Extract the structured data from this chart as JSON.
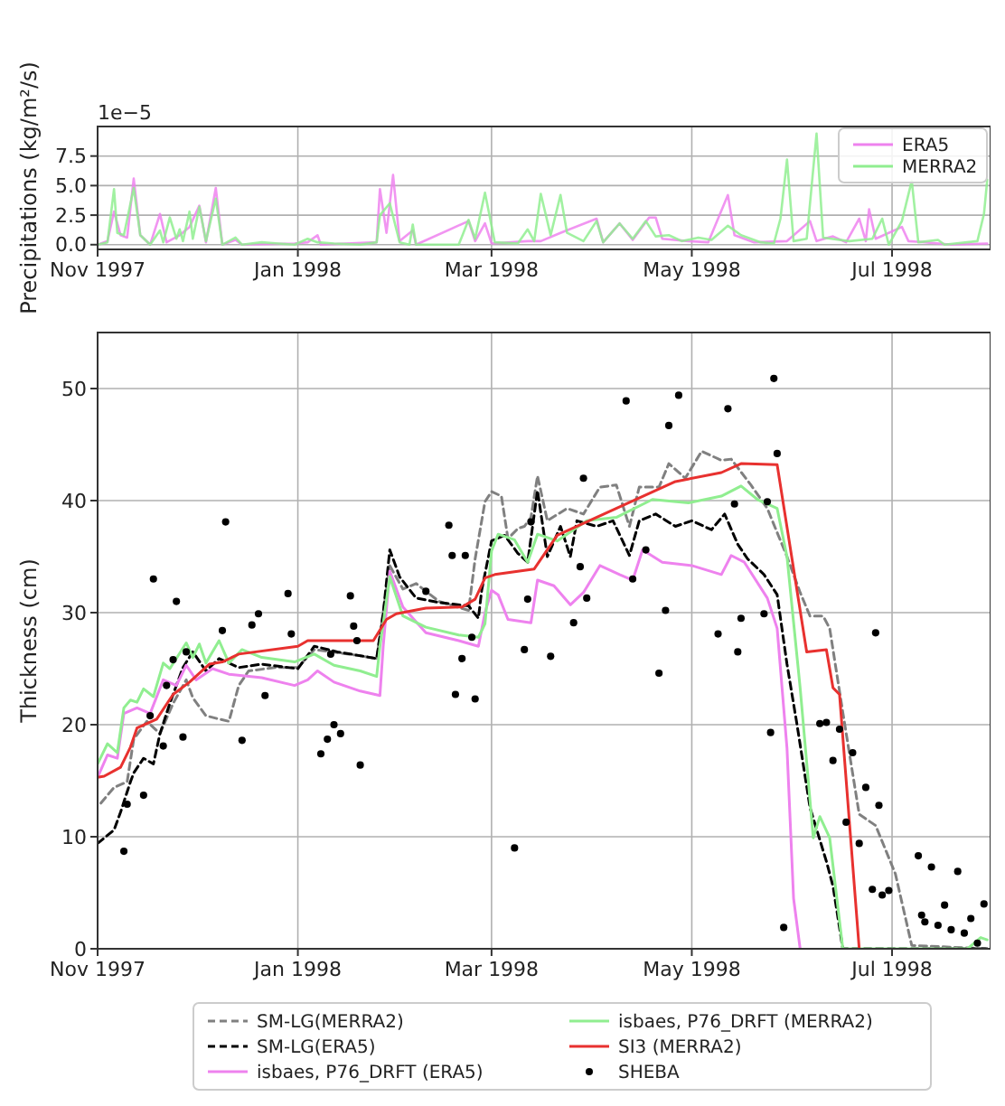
{
  "chart_data": [
    {
      "type": "line",
      "ylabel": "Precipitations (kg/m²/s)",
      "xlim": [
        "1997-11-01",
        "1998-07-31"
      ],
      "xticks": [
        {
          "value": "1997-11-01",
          "label": "Nov 1997"
        },
        {
          "value": "1998-01-01",
          "label": "Jan 1998"
        },
        {
          "value": "1998-03-01",
          "label": "Mar 1998"
        },
        {
          "value": "1998-05-01",
          "label": "May 1998"
        },
        {
          "value": "1998-07-01",
          "label": "Jul 1998"
        }
      ],
      "ylim": [
        -0.4,
        10
      ],
      "yticks": [
        {
          "value": 0,
          "label": "0.0"
        },
        {
          "value": 2.5,
          "label": "2.5"
        },
        {
          "value": 5,
          "label": "5.0"
        },
        {
          "value": 7.5,
          "label": "7.5"
        }
      ],
      "grid": true,
      "legend": "top right",
      "annotations": [
        "1e−5"
      ],
      "series": [
        {
          "name": "ERA5",
          "color": "#ee82ee",
          "x": [
            "1997-11-01",
            "1997-11-04",
            "1997-11-06",
            "1997-11-08",
            "1997-11-10",
            "1997-11-12",
            "1997-11-14",
            "1997-11-17",
            "1997-11-20",
            "1997-11-22",
            "1997-11-26",
            "1997-11-29",
            "1997-12-02",
            "1997-12-04",
            "1997-12-07",
            "1997-12-09",
            "1997-12-13",
            "1997-12-15",
            "1997-12-31",
            "1998-01-04",
            "1998-01-07",
            "1998-01-08",
            "1998-01-25",
            "1998-01-26",
            "1998-01-28",
            "1998-01-30",
            "1998-02-01",
            "1998-02-05",
            "1998-02-06",
            "1998-02-22",
            "1998-02-24",
            "1998-02-27",
            "1998-03-01",
            "1998-03-12",
            "1998-03-16",
            "1998-03-22",
            "1998-04-02",
            "1998-04-04",
            "1998-04-09",
            "1998-04-13",
            "1998-04-18",
            "1998-04-20",
            "1998-04-22",
            "1998-04-30",
            "1998-05-06",
            "1998-05-12",
            "1998-05-14",
            "1998-05-20",
            "1998-05-30",
            "1998-06-06",
            "1998-06-08",
            "1998-06-13",
            "1998-06-17",
            "1998-06-21",
            "1998-06-23",
            "1998-06-24",
            "1998-06-26",
            "1998-07-04",
            "1998-07-06",
            "1998-07-11",
            "1998-07-19",
            "1998-07-30"
          ],
          "values": [
            0,
            0.3,
            2.8,
            0.8,
            0.6,
            5.6,
            0.8,
            0,
            2.6,
            0.2,
            0.8,
            1.5,
            3.3,
            0.2,
            4.8,
            0,
            0.4,
            0,
            0.1,
            0.2,
            0.8,
            0,
            0.2,
            4.7,
            1.0,
            5.9,
            0.3,
            1.2,
            0,
            2.0,
            0.3,
            1.8,
            0.1,
            0.3,
            0.3,
            1.0,
            2.2,
            0.2,
            1.8,
            0.4,
            2.3,
            2.3,
            0.5,
            0.3,
            0.2,
            4.2,
            0.8,
            0.2,
            0.3,
            2.0,
            0.3,
            0.7,
            0.2,
            2.2,
            0.3,
            3.0,
            0.5,
            1.5,
            0.3,
            0.2,
            0,
            0.1
          ]
        },
        {
          "name": "MERRA2",
          "color": "#90ee90",
          "x": [
            "1997-11-01",
            "1997-11-04",
            "1997-11-06",
            "1997-11-07",
            "1997-11-09",
            "1997-11-12",
            "1997-11-14",
            "1997-11-17",
            "1997-11-20",
            "1997-11-21",
            "1997-11-23",
            "1997-11-25",
            "1997-11-26",
            "1997-11-27",
            "1997-11-29",
            "1997-11-30",
            "1997-12-02",
            "1997-12-04",
            "1997-12-07",
            "1997-12-09",
            "1997-12-13",
            "1997-12-15",
            "1997-12-21",
            "1997-12-26",
            "1997-12-31",
            "1998-01-04",
            "1998-01-07",
            "1998-01-12",
            "1998-01-20",
            "1998-01-25",
            "1998-01-26",
            "1998-01-29",
            "1998-02-01",
            "1998-02-04",
            "1998-02-05",
            "1998-02-06",
            "1998-02-19",
            "1998-02-22",
            "1998-02-24",
            "1998-02-27",
            "1998-03-02",
            "1998-03-09",
            "1998-03-12",
            "1998-03-14",
            "1998-03-16",
            "1998-03-19",
            "1998-03-22",
            "1998-03-24",
            "1998-03-29",
            "1998-04-02",
            "1998-04-04",
            "1998-04-09",
            "1998-04-13",
            "1998-04-17",
            "1998-04-20",
            "1998-04-24",
            "1998-04-28",
            "1998-05-03",
            "1998-05-07",
            "1998-05-12",
            "1998-05-16",
            "1998-05-22",
            "1998-05-26",
            "1998-05-28",
            "1998-05-30",
            "1998-06-01",
            "1998-06-05",
            "1998-06-08",
            "1998-06-10",
            "1998-06-18",
            "1998-06-25",
            "1998-06-28",
            "1998-06-30",
            "1998-07-04",
            "1998-07-07",
            "1998-07-09",
            "1998-07-15",
            "1998-07-17",
            "1998-07-27",
            "1998-07-29",
            "1998-07-30"
          ],
          "values": [
            0,
            0.2,
            4.7,
            1.0,
            0.8,
            4.8,
            0.8,
            0,
            1.2,
            0.2,
            2.3,
            0.5,
            1.3,
            0.3,
            2.8,
            0.5,
            3.2,
            0.3,
            3.9,
            0,
            0.6,
            0,
            0.2,
            0.1,
            0,
            0.5,
            0.2,
            0.1,
            0,
            0.2,
            2.5,
            3.5,
            0.2,
            0,
            1.7,
            0,
            0,
            2.1,
            0.5,
            4.4,
            0.2,
            0.1,
            1.3,
            0.3,
            4.3,
            0.8,
            4.2,
            1.0,
            0.3,
            2.0,
            0.2,
            1.8,
            0.5,
            2.0,
            0.7,
            0.8,
            0.3,
            0.6,
            0.4,
            1.6,
            0.8,
            0.2,
            0.1,
            2.2,
            7.2,
            0.3,
            0.5,
            9.4,
            0.6,
            0.3,
            0.5,
            2.2,
            0,
            2.0,
            5.4,
            0.2,
            0.4,
            0,
            0.3,
            2.6,
            5.5
          ]
        }
      ]
    },
    {
      "type": "line",
      "ylabel": "Thickness (cm)",
      "xlim": [
        "1997-11-01",
        "1998-07-31"
      ],
      "xticks": [
        {
          "value": "1997-11-01",
          "label": "Nov 1997"
        },
        {
          "value": "1998-01-01",
          "label": "Jan 1998"
        },
        {
          "value": "1998-03-01",
          "label": "Mar 1998"
        },
        {
          "value": "1998-05-01",
          "label": "May 1998"
        },
        {
          "value": "1998-07-01",
          "label": "Jul 1998"
        }
      ],
      "ylim": [
        0,
        55
      ],
      "yticks": [
        0,
        10,
        20,
        30,
        40,
        50
      ],
      "grid": true,
      "legend": "bottom",
      "series": [
        {
          "name": "SM-LG(MERRA2)",
          "color": "#808080",
          "line_style": "dashed",
          "x": [
            "1997-11-02",
            "1997-11-06",
            "1997-11-10",
            "1997-11-12",
            "1997-11-16",
            "1997-11-20",
            "1997-11-24",
            "1997-11-28",
            "1997-11-30",
            "1997-12-04",
            "1997-12-08",
            "1997-12-11",
            "1997-12-14",
            "1997-12-17",
            "1997-12-25",
            "1998-01-01",
            "1998-01-06",
            "1998-01-19",
            "1998-01-25",
            "1998-01-29",
            "1998-02-02",
            "1998-02-06",
            "1998-02-13",
            "1998-02-22",
            "1998-02-24",
            "1998-02-27",
            "1998-03-01",
            "1998-03-04",
            "1998-03-06",
            "1998-03-09",
            "1998-03-11",
            "1998-03-13",
            "1998-03-15",
            "1998-03-18",
            "1998-03-24",
            "1998-03-29",
            "1998-04-03",
            "1998-04-08",
            "1998-04-12",
            "1998-04-15",
            "1998-04-21",
            "1998-04-24",
            "1998-04-29",
            "1998-05-04",
            "1998-05-10",
            "1998-05-13",
            "1998-05-19",
            "1998-05-24",
            "1998-05-30",
            "1998-06-03",
            "1998-06-06",
            "1998-06-10",
            "1998-06-12",
            "1998-06-16",
            "1998-06-21",
            "1998-06-26",
            "1998-07-02",
            "1998-07-07",
            "1998-07-30"
          ],
          "values": [
            13.0,
            14.4,
            14.9,
            18.7,
            20.3,
            19.2,
            21.9,
            24.0,
            22.4,
            20.8,
            20.5,
            20.3,
            23.5,
            24.8,
            25.1,
            25.1,
            26.7,
            26.2,
            25.9,
            34.2,
            32.1,
            32.6,
            31.0,
            30.2,
            34.8,
            39.9,
            40.8,
            40.4,
            36.6,
            37.5,
            37.7,
            38.5,
            42.2,
            38.2,
            39.3,
            38.8,
            41.2,
            41.4,
            37.7,
            41.2,
            41.2,
            43.3,
            42.0,
            44.4,
            43.6,
            43.7,
            41.4,
            39.3,
            35.0,
            31.8,
            29.7,
            29.7,
            28.6,
            21.1,
            12.0,
            11.0,
            6.7,
            0.3,
            0
          ]
        },
        {
          "name": "SM-LG(ERA5)",
          "color": "#000000",
          "line_style": "dashed",
          "x": [
            "1997-11-01",
            "1997-11-06",
            "1997-11-08",
            "1997-11-11",
            "1997-11-12",
            "1997-11-15",
            "1997-11-18",
            "1997-11-20",
            "1997-11-23",
            "1997-11-27",
            "1997-11-30",
            "1997-12-04",
            "1997-12-08",
            "1997-12-14",
            "1997-12-21",
            "1998-01-01",
            "1998-01-06",
            "1998-01-13",
            "1998-01-19",
            "1998-01-25",
            "1998-01-27",
            "1998-01-29",
            "1998-02-01",
            "1998-02-06",
            "1998-02-13",
            "1998-02-22",
            "1998-02-25",
            "1998-02-26",
            "1998-03-01",
            "1998-03-05",
            "1998-03-09",
            "1998-03-12",
            "1998-03-15",
            "1998-03-18",
            "1998-03-22",
            "1998-03-25",
            "1998-03-27",
            "1998-04-02",
            "1998-04-07",
            "1998-04-12",
            "1998-04-15",
            "1998-04-20",
            "1998-04-26",
            "1998-05-01",
            "1998-05-07",
            "1998-05-11",
            "1998-05-15",
            "1998-05-18",
            "1998-05-23",
            "1998-05-27",
            "1998-05-30",
            "1998-06-02",
            "1998-06-06",
            "1998-06-11",
            "1998-06-13",
            "1998-06-16",
            "1998-07-30"
          ],
          "values": [
            9.4,
            10.6,
            12.2,
            14.9,
            15.7,
            17.0,
            16.5,
            19.2,
            21.9,
            25.1,
            26.5,
            24.8,
            25.9,
            25.1,
            25.4,
            25.0,
            27.0,
            26.5,
            26.2,
            25.9,
            29.9,
            35.6,
            33.2,
            31.3,
            30.9,
            30.6,
            29.5,
            32.0,
            36.4,
            36.9,
            35.3,
            34.5,
            40.9,
            35.0,
            37.7,
            35.0,
            38.2,
            37.7,
            38.2,
            35.1,
            38.2,
            38.8,
            37.7,
            38.2,
            37.4,
            38.8,
            36.1,
            34.8,
            33.4,
            31.6,
            25.4,
            20.1,
            12.6,
            7.8,
            5.6,
            0,
            0
          ]
        },
        {
          "name": "isbaes, P76_DRFT (ERA5)",
          "color": "#ee82ee",
          "line_style": "solid",
          "x": [
            "1997-11-01",
            "1997-11-04",
            "1997-11-07",
            "1997-11-09",
            "1997-11-13",
            "1997-11-17",
            "1997-11-21",
            "1997-11-25",
            "1997-11-28",
            "1997-12-01",
            "1997-12-06",
            "1997-12-11",
            "1997-12-21",
            "1997-12-31",
            "1998-01-04",
            "1998-01-07",
            "1998-01-12",
            "1998-01-20",
            "1998-01-26",
            "1998-01-27",
            "1998-01-29",
            "1998-02-02",
            "1998-02-09",
            "1998-02-19",
            "1998-02-25",
            "1998-02-27",
            "1998-03-01",
            "1998-03-03",
            "1998-03-06",
            "1998-03-13",
            "1998-03-15",
            "1998-03-20",
            "1998-03-25",
            "1998-03-29",
            "1998-04-03",
            "1998-04-09",
            "1998-04-13",
            "1998-04-16",
            "1998-04-22",
            "1998-05-01",
            "1998-05-10",
            "1998-05-13",
            "1998-05-17",
            "1998-05-24",
            "1998-05-27",
            "1998-05-30",
            "1998-06-01",
            "1998-06-03"
          ],
          "values": [
            15.3,
            17.3,
            17.0,
            21.0,
            21.5,
            21.0,
            24.0,
            23.5,
            25.3,
            24.0,
            25.0,
            24.5,
            24.2,
            23.5,
            24.0,
            24.8,
            23.8,
            23.0,
            22.6,
            27.0,
            33.7,
            30.5,
            28.2,
            27.5,
            27.0,
            30.0,
            32.0,
            31.6,
            29.4,
            29.1,
            32.9,
            32.4,
            30.7,
            31.8,
            34.2,
            33.4,
            32.9,
            35.6,
            34.5,
            34.2,
            33.4,
            35.1,
            34.5,
            31.3,
            28.6,
            17.9,
            4.5,
            0
          ]
        },
        {
          "name": "isbaes, P76_DRFT (MERRA2)",
          "color": "#90ee90",
          "line_style": "solid",
          "x": [
            "1997-11-01",
            "1997-11-04",
            "1997-11-07",
            "1997-11-09",
            "1997-11-11",
            "1997-11-13",
            "1997-11-15",
            "1997-11-18",
            "1997-11-21",
            "1997-11-23",
            "1997-11-28",
            "1997-11-30",
            "1997-12-02",
            "1997-12-04",
            "1997-12-08",
            "1997-12-11",
            "1997-12-15",
            "1997-12-21",
            "1997-12-31",
            "1998-01-06",
            "1998-01-12",
            "1998-01-20",
            "1998-01-25",
            "1998-01-26",
            "1998-01-29",
            "1998-02-02",
            "1998-02-09",
            "1998-02-19",
            "1998-02-25",
            "1998-02-27",
            "1998-03-01",
            "1998-03-03",
            "1998-03-08",
            "1998-03-12",
            "1998-03-15",
            "1998-03-21",
            "1998-03-30",
            "1998-04-08",
            "1998-04-19",
            "1998-04-30",
            "1998-05-10",
            "1998-05-16",
            "1998-05-21",
            "1998-05-27",
            "1998-05-30",
            "1998-06-03",
            "1998-06-07",
            "1998-06-09",
            "1998-06-12",
            "1998-06-16",
            "1998-07-24",
            "1998-07-28",
            "1998-07-30"
          ],
          "values": [
            16.5,
            18.3,
            17.5,
            21.5,
            22.2,
            22.0,
            23.2,
            22.5,
            25.5,
            25.0,
            27.3,
            26.0,
            27.2,
            25.5,
            27.5,
            25.5,
            26.7,
            26.0,
            25.6,
            26.3,
            25.3,
            24.8,
            24.3,
            27.0,
            33.2,
            29.7,
            28.7,
            28.0,
            27.8,
            29.0,
            35.5,
            37.0,
            36.5,
            34.5,
            37.0,
            36.4,
            38.2,
            38.5,
            40.1,
            39.8,
            40.4,
            41.3,
            40.1,
            39.3,
            35.0,
            23.3,
            9.9,
            11.8,
            9.9,
            0,
            0,
            1.0,
            0.8
          ]
        },
        {
          "name": "SI3 (MERRA2)",
          "color": "#e8312f",
          "line_style": "solid",
          "x": [
            "1997-11-01",
            "1997-11-03",
            "1997-11-08",
            "1997-11-11",
            "1997-11-13",
            "1997-11-19",
            "1997-11-24",
            "1997-11-29",
            "1997-12-05",
            "1997-12-09",
            "1997-12-14",
            "1998-01-01",
            "1998-01-04",
            "1998-01-24",
            "1998-01-28",
            "1998-01-31",
            "1998-02-09",
            "1998-02-20",
            "1998-02-24",
            "1998-02-27",
            "1998-03-02",
            "1998-03-14",
            "1998-03-21",
            "1998-04-08",
            "1998-04-26",
            "1998-05-10",
            "1998-05-16",
            "1998-05-27",
            "1998-06-05",
            "1998-06-11",
            "1998-06-13",
            "1998-06-15",
            "1998-06-21"
          ],
          "values": [
            15.3,
            15.4,
            16.2,
            18.0,
            19.7,
            20.5,
            22.7,
            23.8,
            25.4,
            25.6,
            26.3,
            27.0,
            27.5,
            27.5,
            29.4,
            29.9,
            30.4,
            30.5,
            31.2,
            33.1,
            33.4,
            33.9,
            36.9,
            39.3,
            41.7,
            42.5,
            43.3,
            43.2,
            26.5,
            26.7,
            23.3,
            22.7,
            0
          ]
        },
        {
          "name": "SHEBA",
          "type": "scatter",
          "marker": "circle",
          "color": "#000000",
          "x": [
            "1997-11-09",
            "1997-11-10",
            "1997-11-15",
            "1997-11-17",
            "1997-11-18",
            "1997-11-21",
            "1997-11-22",
            "1997-11-24",
            "1997-11-25",
            "1997-11-27",
            "1997-11-28",
            "1997-12-09",
            "1997-12-10",
            "1997-12-15",
            "1997-12-18",
            "1997-12-20",
            "1997-12-22",
            "1997-12-29",
            "1997-12-30",
            "1998-01-08",
            "1998-01-10",
            "1998-01-11",
            "1998-01-12",
            "1998-01-14",
            "1998-01-18",
            "1998-01-17",
            "1998-01-19",
            "1998-01-20",
            "1998-02-09",
            "1998-02-16",
            "1998-02-17",
            "1998-02-18",
            "1998-02-20",
            "1998-02-21",
            "1998-02-23",
            "1998-02-24",
            "1998-03-08",
            "1998-03-12",
            "1998-03-11",
            "1998-03-13",
            "1998-03-19",
            "1998-03-26",
            "1998-03-28",
            "1998-03-29",
            "1998-03-30",
            "1998-04-11",
            "1998-04-13",
            "1998-04-17",
            "1998-04-21",
            "1998-04-24",
            "1998-04-23",
            "1998-04-27",
            "1998-05-09",
            "1998-05-12",
            "1998-05-14",
            "1998-05-15",
            "1998-05-16",
            "1998-05-23",
            "1998-05-24",
            "1998-05-25",
            "1998-05-26",
            "1998-05-27",
            "1998-05-29",
            "1998-06-09",
            "1998-06-11",
            "1998-06-13",
            "1998-06-15",
            "1998-06-17",
            "1998-06-19",
            "1998-06-21",
            "1998-06-23",
            "1998-06-25",
            "1998-06-26",
            "1998-06-27",
            "1998-06-28",
            "1998-06-30",
            "1998-07-09",
            "1998-07-10",
            "1998-07-11",
            "1998-07-13",
            "1998-07-15",
            "1998-07-17",
            "1998-07-19",
            "1998-07-21",
            "1998-07-23",
            "1998-07-25",
            "1998-07-27",
            "1998-07-29"
          ],
          "values": [
            8.7,
            12.9,
            13.7,
            20.8,
            33.0,
            18.1,
            23.5,
            25.8,
            31.0,
            18.9,
            26.5,
            28.4,
            38.1,
            18.6,
            28.9,
            29.9,
            22.6,
            31.7,
            28.1,
            17.4,
            18.7,
            26.3,
            20.0,
            19.2,
            28.8,
            31.5,
            27.5,
            16.4,
            31.9,
            37.8,
            35.1,
            22.7,
            25.9,
            35.1,
            27.8,
            22.3,
            9.0,
            31.2,
            26.7,
            38.1,
            26.1,
            29.1,
            34.1,
            42.0,
            31.3,
            48.9,
            33.0,
            35.6,
            24.6,
            46.7,
            30.2,
            49.4,
            28.1,
            48.2,
            39.7,
            26.5,
            29.5,
            29.9,
            39.9,
            19.3,
            50.9,
            44.2,
            1.9,
            20.1,
            20.2,
            16.8,
            19.6,
            11.3,
            17.5,
            9.4,
            14.4,
            5.3,
            28.2,
            12.8,
            4.8,
            5.2,
            8.3,
            3.0,
            2.4,
            7.3,
            2.1,
            3.9,
            1.7,
            6.9,
            1.4,
            2.7,
            0.5,
            4.0
          ]
        }
      ]
    }
  ]
}
